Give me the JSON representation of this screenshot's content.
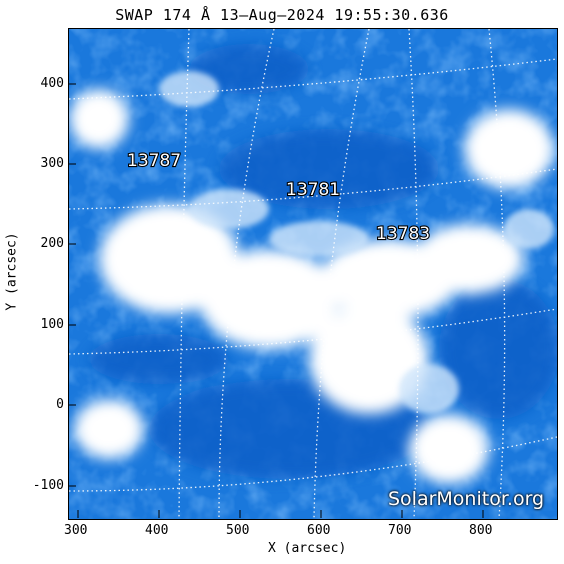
{
  "title": "SWAP 174 Å 13–Aug–2024 19:55:30.636",
  "axes": {
    "x_label": "X (arcsec)",
    "y_label": "Y (arcsec)",
    "x_ticks": [
      "300",
      "400",
      "500",
      "600",
      "700",
      "800"
    ],
    "y_ticks": [
      "400",
      "300",
      "200",
      "100",
      "0",
      "-100"
    ]
  },
  "regions": [
    {
      "id": "13787",
      "x_arcsec": 360,
      "y_arcsec": 302
    },
    {
      "id": "13781",
      "x_arcsec": 580,
      "y_arcsec": 265
    },
    {
      "id": "13783",
      "x_arcsec": 705,
      "y_arcsec": 212
    }
  ],
  "watermark": "SolarMonitor.org",
  "colors": {
    "image_base": "#1874d8",
    "bright": "#ffffff",
    "grid": "#ffffff"
  }
}
